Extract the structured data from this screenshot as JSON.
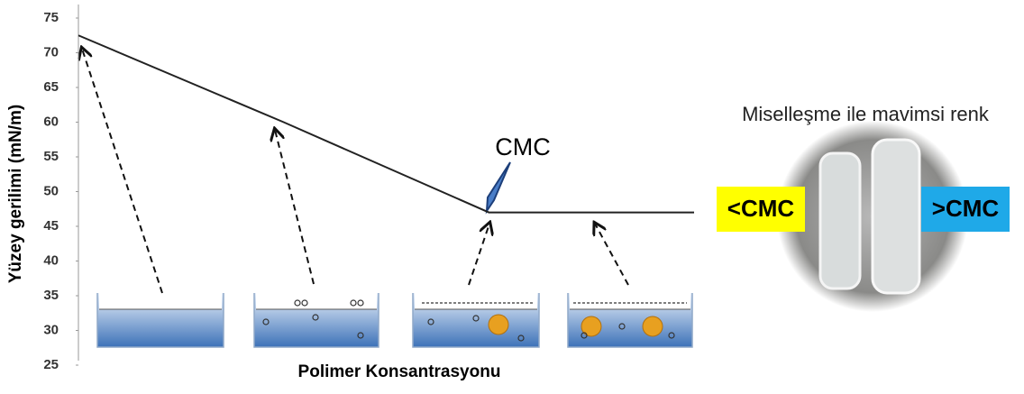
{
  "chart_data": {
    "type": "line",
    "y_label": "Yüzey gerilimi (mN/m)",
    "x_label": "Polimer Konsantrasyonu",
    "categories": [
      null,
      null,
      null,
      null
    ],
    "series": [
      {
        "color": "#222222",
        "values": [
          72.5,
          60,
          47,
          47
        ]
      }
    ],
    "ylim": [
      25,
      75
    ],
    "yticks": [
      25,
      30,
      35,
      40,
      45,
      50,
      55,
      60,
      65,
      70,
      75
    ],
    "annotations": [
      "CMC"
    ]
  },
  "photo": {
    "caption": "Miselleşme ile mavimsi renk",
    "labels": [
      "<CMC",
      ">CMC"
    ]
  }
}
